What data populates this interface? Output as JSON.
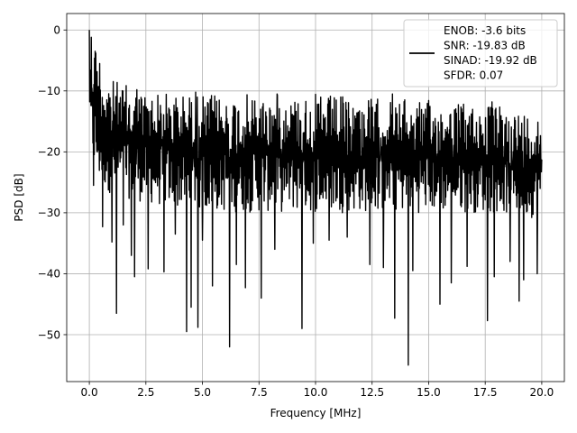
{
  "chart_data": {
    "type": "line",
    "title": "",
    "xlabel": "Frequency [MHz]",
    "ylabel": "PSD [dB]",
    "xlim": [
      -1.0,
      21.0
    ],
    "ylim": [
      -57.7,
      2.7
    ],
    "xticks": [
      0.0,
      2.5,
      5.0,
      7.5,
      10.0,
      12.5,
      15.0,
      17.5,
      20.0
    ],
    "xtick_labels": [
      "0.0",
      "2.5",
      "5.0",
      "7.5",
      "10.0",
      "12.5",
      "15.0",
      "17.5",
      "20.0"
    ],
    "yticks": [
      0,
      -10,
      -20,
      -30,
      -40,
      -50
    ],
    "ytick_labels": [
      "0",
      "−10",
      "−20",
      "−30",
      "−40",
      "−50"
    ],
    "grid": true,
    "legend_placement": "upper right",
    "line_color": "#000000",
    "series": [
      {
        "name": "ENOB: -3.6 bits\nSNR: -19.83 dB\nSINAD: -19.92 dB\nSFDR: 0.07",
        "description": "Dense noisy power spectral density trace, fluctuating roughly between -12 and -32 dB with deep nulls down to about -55 dB; peak near 0 dB at the lowest frequencies.",
        "envelope": {
          "x": [
            0.0,
            0.1,
            0.3,
            0.5,
            1.0,
            2.0,
            3.0,
            5.0,
            7.5,
            10.0,
            12.5,
            15.0,
            17.5,
            20.0
          ],
          "upper": [
            -1.5,
            0.0,
            -2.0,
            -5.0,
            -8.0,
            -9.5,
            -10.0,
            -10.5,
            -10.5,
            -10.5,
            -11.0,
            -11.5,
            -12.0,
            -13.5
          ],
          "lower": [
            -13.0,
            -23.0,
            -25.0,
            -26.0,
            -27.0,
            -28.0,
            -29.0,
            -30.0,
            -30.0,
            -30.0,
            -30.0,
            -30.0,
            -30.0,
            -31.0
          ]
        },
        "dips": [
          {
            "x": 0.18,
            "y": -25.5
          },
          {
            "x": 0.58,
            "y": -32.3
          },
          {
            "x": 1.0,
            "y": -34.8
          },
          {
            "x": 1.2,
            "y": -46.5
          },
          {
            "x": 1.5,
            "y": -32.0
          },
          {
            "x": 1.85,
            "y": -37.0
          },
          {
            "x": 2.0,
            "y": -40.5
          },
          {
            "x": 2.6,
            "y": -39.2
          },
          {
            "x": 3.3,
            "y": -39.7
          },
          {
            "x": 3.8,
            "y": -33.5
          },
          {
            "x": 4.3,
            "y": -49.5
          },
          {
            "x": 4.5,
            "y": -45.5
          },
          {
            "x": 4.8,
            "y": -48.8
          },
          {
            "x": 5.0,
            "y": -34.5
          },
          {
            "x": 5.45,
            "y": -42.0
          },
          {
            "x": 6.2,
            "y": -52.0
          },
          {
            "x": 6.5,
            "y": -38.5
          },
          {
            "x": 6.9,
            "y": -42.3
          },
          {
            "x": 7.6,
            "y": -44.0
          },
          {
            "x": 8.2,
            "y": -36.0
          },
          {
            "x": 9.4,
            "y": -49.0
          },
          {
            "x": 9.9,
            "y": -35.0
          },
          {
            "x": 10.6,
            "y": -34.5
          },
          {
            "x": 11.4,
            "y": -34.0
          },
          {
            "x": 12.4,
            "y": -38.5
          },
          {
            "x": 13.0,
            "y": -39.0
          },
          {
            "x": 13.5,
            "y": -47.3
          },
          {
            "x": 14.1,
            "y": -55.0
          },
          {
            "x": 14.3,
            "y": -39.5
          },
          {
            "x": 15.5,
            "y": -45.0
          },
          {
            "x": 16.0,
            "y": -41.5
          },
          {
            "x": 16.7,
            "y": -38.8
          },
          {
            "x": 17.6,
            "y": -47.7
          },
          {
            "x": 17.9,
            "y": -40.5
          },
          {
            "x": 18.6,
            "y": -38.0
          },
          {
            "x": 19.0,
            "y": -44.5
          },
          {
            "x": 19.2,
            "y": -41.0
          },
          {
            "x": 19.8,
            "y": -40.0
          }
        ],
        "peaks": [
          {
            "x": 0.0,
            "y": 0.0
          },
          {
            "x": 0.08,
            "y": -1.2
          },
          {
            "x": 0.25,
            "y": -3.5
          },
          {
            "x": 0.45,
            "y": -5.5
          },
          {
            "x": 2.1,
            "y": -9.8
          },
          {
            "x": 4.7,
            "y": -10.2
          },
          {
            "x": 8.3,
            "y": -10.5
          },
          {
            "x": 13.4,
            "y": -10.5
          },
          {
            "x": 17.8,
            "y": -11.8
          }
        ]
      }
    ]
  }
}
